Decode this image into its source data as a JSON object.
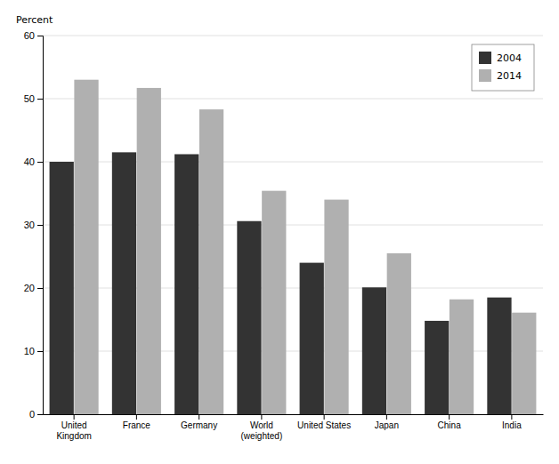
{
  "chart_data": {
    "type": "bar",
    "y_label": "Percent",
    "categories": [
      "United\nKingdom",
      "France",
      "Germany",
      "World\n(weighted)",
      "United States",
      "Japan",
      "China",
      "India"
    ],
    "series": [
      {
        "name": "2004",
        "color": "#333333",
        "values": [
          40.0,
          41.5,
          41.2,
          30.6,
          24.0,
          20.1,
          14.8,
          18.5
        ]
      },
      {
        "name": "2014",
        "color": "#b0b0b0",
        "values": [
          53.0,
          51.7,
          48.3,
          35.4,
          34.0,
          25.5,
          18.2,
          16.1
        ]
      }
    ],
    "ylim": [
      0,
      60
    ],
    "yticks": [
      0,
      10,
      20,
      30,
      40,
      50,
      60
    ],
    "grid": true,
    "legend": "upper right"
  }
}
